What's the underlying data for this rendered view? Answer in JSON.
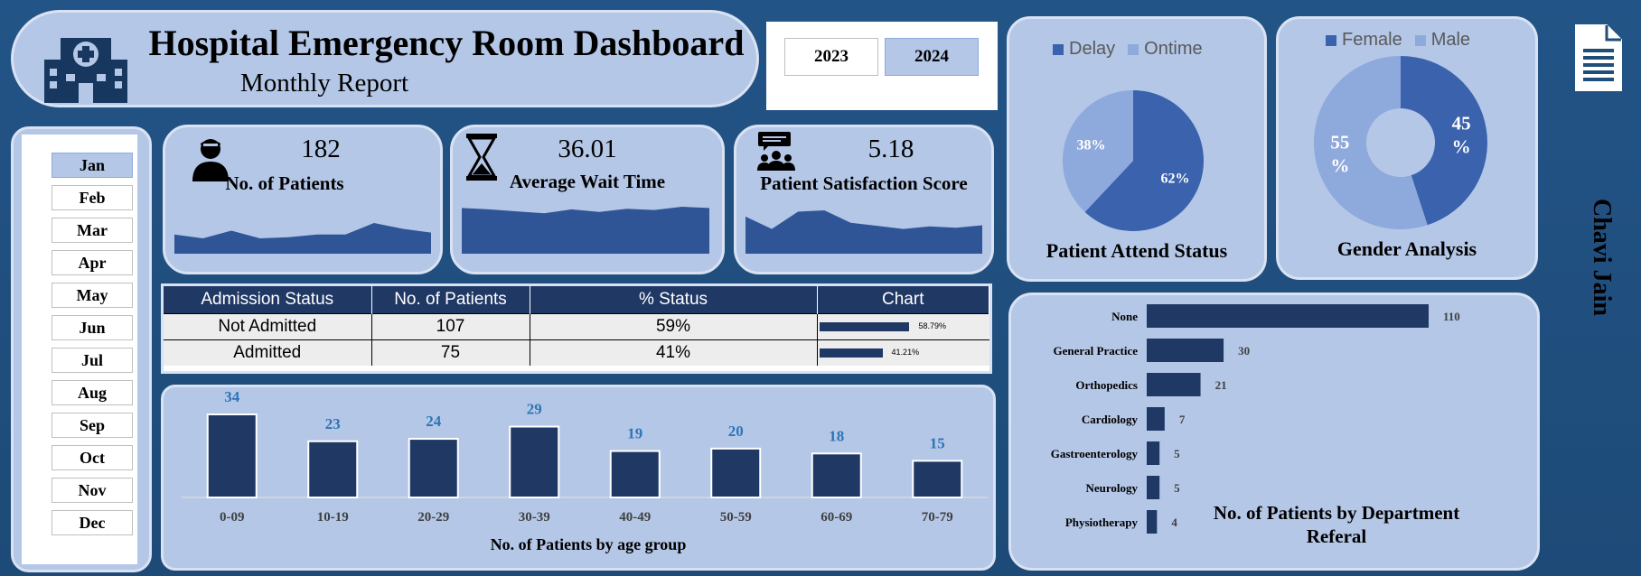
{
  "header": {
    "title": "Hospital Emergency Room Dashboard",
    "subtitle": "Monthly Report"
  },
  "years": [
    "2023",
    "2024"
  ],
  "selected_year": "2024",
  "months": [
    "Jan",
    "Feb",
    "Mar",
    "Apr",
    "May",
    "Jun",
    "Jul",
    "Aug",
    "Sep",
    "Oct",
    "Nov",
    "Dec"
  ],
  "selected_month": "Jan",
  "kpis": {
    "patients": {
      "value": "182",
      "label": "No. of Patients",
      "trend": [
        5,
        4,
        6,
        4,
        4.3,
        5,
        5,
        8,
        6.5,
        5.5
      ]
    },
    "wait_time": {
      "value": "36.01",
      "label": "Average Wait Time",
      "trend": [
        7,
        6.8,
        6.5,
        6.2,
        6.8,
        6.4,
        6.9,
        6.7,
        7.2,
        7
      ]
    },
    "satisfaction": {
      "value": "5.18",
      "label": "Patient Satisfaction Score",
      "trend": [
        6,
        4,
        6.8,
        7,
        5,
        4.5,
        4,
        4.4,
        4.2,
        4.6
      ]
    }
  },
  "admission": {
    "headers": [
      "Admission Status",
      "No. of Patients",
      "% Status",
      "Chart"
    ],
    "rows": [
      {
        "status": "Not Admitted",
        "count": "107",
        "pct": "59%",
        "chart_label": "58.79%",
        "fraction": 0.5879
      },
      {
        "status": "Admitted",
        "count": "75",
        "pct": "41%",
        "chart_label": "41.21%",
        "fraction": 0.4121
      }
    ]
  },
  "attend": {
    "title": "Patient Attend Status",
    "legend": [
      "Delay",
      "Ontime"
    ]
  },
  "gender": {
    "title": "Gender Analysis",
    "legend": [
      "Female",
      "Male"
    ]
  },
  "author": "Chavi Jain",
  "colors": {
    "dark": "#203864",
    "medium": "#3a62ad",
    "light": "#8ea9db",
    "panel": "#b4c7e7"
  },
  "chart_data": [
    {
      "type": "bar",
      "title": "No. of Patients by age group",
      "categories": [
        "0-09",
        "10-19",
        "20-29",
        "30-39",
        "40-49",
        "50-59",
        "60-69",
        "70-79"
      ],
      "values": [
        34,
        23,
        24,
        29,
        19,
        20,
        18,
        15
      ]
    },
    {
      "type": "pie",
      "title": "Patient Attend Status",
      "labels": [
        "Delay",
        "Ontime"
      ],
      "values": [
        62,
        38
      ],
      "data_labels": [
        "62%",
        "38%"
      ]
    },
    {
      "type": "pie",
      "title": "Gender Analysis",
      "labels": [
        "Female",
        "Male"
      ],
      "values": [
        45,
        55
      ],
      "data_labels": [
        "45 %",
        "55 %"
      ],
      "donut": true
    },
    {
      "type": "bar",
      "orientation": "horizontal",
      "title": "No. of Patients by Department Referal",
      "categories": [
        "None",
        "General Practice",
        "Orthopedics",
        "Cardiology",
        "Gastroenterology",
        "Neurology",
        "Physiotherapy"
      ],
      "values": [
        110,
        30,
        21,
        7,
        5,
        5,
        4
      ]
    }
  ]
}
